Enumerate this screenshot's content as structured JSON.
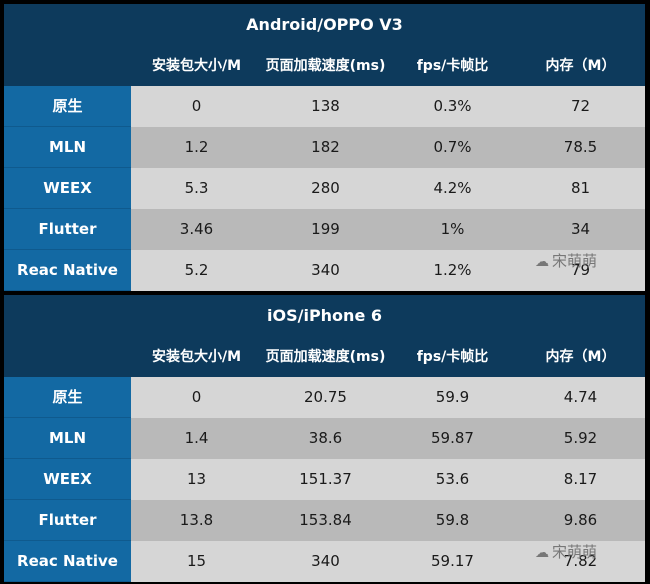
{
  "headers": [
    "安装包大小/M",
    "页面加载速度(ms)",
    "fps/卡帧比",
    "内存（M）"
  ],
  "tables": [
    {
      "title": "Android/OPPO V3",
      "rows": [
        {
          "name": "原生",
          "values": [
            "0",
            "138",
            "0.3%",
            "72"
          ]
        },
        {
          "name": "MLN",
          "values": [
            "1.2",
            "182",
            "0.7%",
            "78.5"
          ]
        },
        {
          "name": "WEEX",
          "values": [
            "5.3",
            "280",
            "4.2%",
            "81"
          ]
        },
        {
          "name": "Flutter",
          "values": [
            "3.46",
            "199",
            "1%",
            "34"
          ]
        },
        {
          "name": "Reac Native",
          "values": [
            "5.2",
            "340",
            "1.2%",
            "79"
          ]
        }
      ]
    },
    {
      "title": "iOS/iPhone 6",
      "rows": [
        {
          "name": "原生",
          "values": [
            "0",
            "20.75",
            "59.9",
            "4.74"
          ]
        },
        {
          "name": "MLN",
          "values": [
            "1.4",
            "38.6",
            "59.87",
            "5.92"
          ]
        },
        {
          "name": "WEEX",
          "values": [
            "13",
            "151.37",
            "53.6",
            "8.17"
          ]
        },
        {
          "name": "Flutter",
          "values": [
            "13.8",
            "153.84",
            "59.8",
            "9.86"
          ]
        },
        {
          "name": "Reac Native",
          "values": [
            "15",
            "340",
            "59.17",
            "7.82"
          ]
        }
      ]
    }
  ],
  "watermark": {
    "text": "宋萌萌",
    "icon": "wechat-icon"
  }
}
